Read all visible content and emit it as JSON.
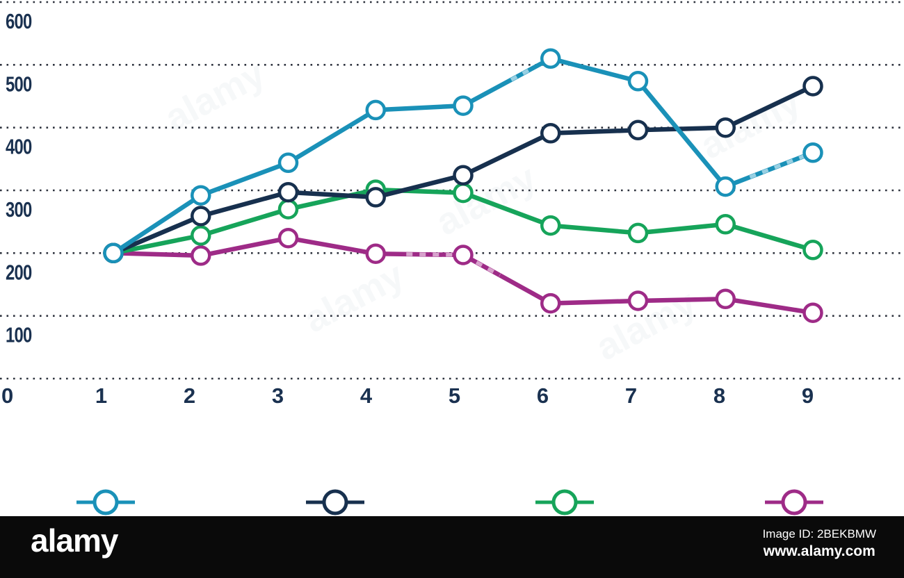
{
  "chart_data": {
    "type": "line",
    "title": "",
    "xlabel": "",
    "ylabel": "",
    "x": [
      1,
      2,
      3,
      4,
      5,
      6,
      7,
      8,
      9
    ],
    "x_axis_labels": [
      "0",
      "1",
      "2",
      "3",
      "4",
      "5",
      "6",
      "7",
      "8",
      "9"
    ],
    "y_ticks": [
      0,
      100,
      200,
      300,
      400,
      500,
      600
    ],
    "ylim": [
      0,
      600
    ],
    "grid": "horizontal-dotted",
    "marker": "open-circle",
    "legend_position": "bottom",
    "series": [
      {
        "name": "teal-series",
        "color": "#1a91b8",
        "values": [
          200,
          292,
          344,
          428,
          435,
          510,
          474,
          306,
          360
        ]
      },
      {
        "name": "navy-series",
        "color": "#17304e",
        "values": [
          200,
          259,
          297,
          289,
          324,
          391,
          396,
          400,
          466
        ]
      },
      {
        "name": "green-series",
        "color": "#16a45a",
        "values": [
          200,
          228,
          270,
          301,
          296,
          244,
          232,
          246,
          205
        ]
      },
      {
        "name": "magenta-series",
        "color": "#9e2b87",
        "values": [
          200,
          196,
          224,
          199,
          197,
          120,
          124,
          127,
          105
        ]
      }
    ]
  },
  "axis": {
    "label_color": "#1a3150",
    "grid_color": "#2e333e"
  },
  "legend": {
    "items": [
      {
        "name": "teal-series",
        "color": "#1a91b8"
      },
      {
        "name": "navy-series",
        "color": "#17304e"
      },
      {
        "name": "green-series",
        "color": "#16a45a"
      },
      {
        "name": "magenta-series",
        "color": "#9e2b87"
      }
    ]
  },
  "watermark": {
    "text": "alamy",
    "overlays": [
      {
        "series": 0,
        "from": 8,
        "to": 9,
        "t0": 0.28,
        "t1": 0.92,
        "tint": "#a6d7e8"
      },
      {
        "series": 0,
        "from": 5,
        "to": 6,
        "t0": 0.55,
        "t1": 0.76,
        "tint": "#a6d7e8"
      },
      {
        "series": 3,
        "from": 4,
        "to": 5,
        "t0": 0.35,
        "t1": 1.0,
        "tint": "#dfb0d5"
      },
      {
        "series": 3,
        "from": 5,
        "to": 6,
        "t0": 0.02,
        "t1": 0.42,
        "tint": "#dfb0d5"
      }
    ]
  },
  "footer": {
    "logo_text": "alamy",
    "image_id_label": "Image ID: 2BEKBMW",
    "url_label": "www.alamy.com",
    "bar_color": "#0a0a0a"
  }
}
